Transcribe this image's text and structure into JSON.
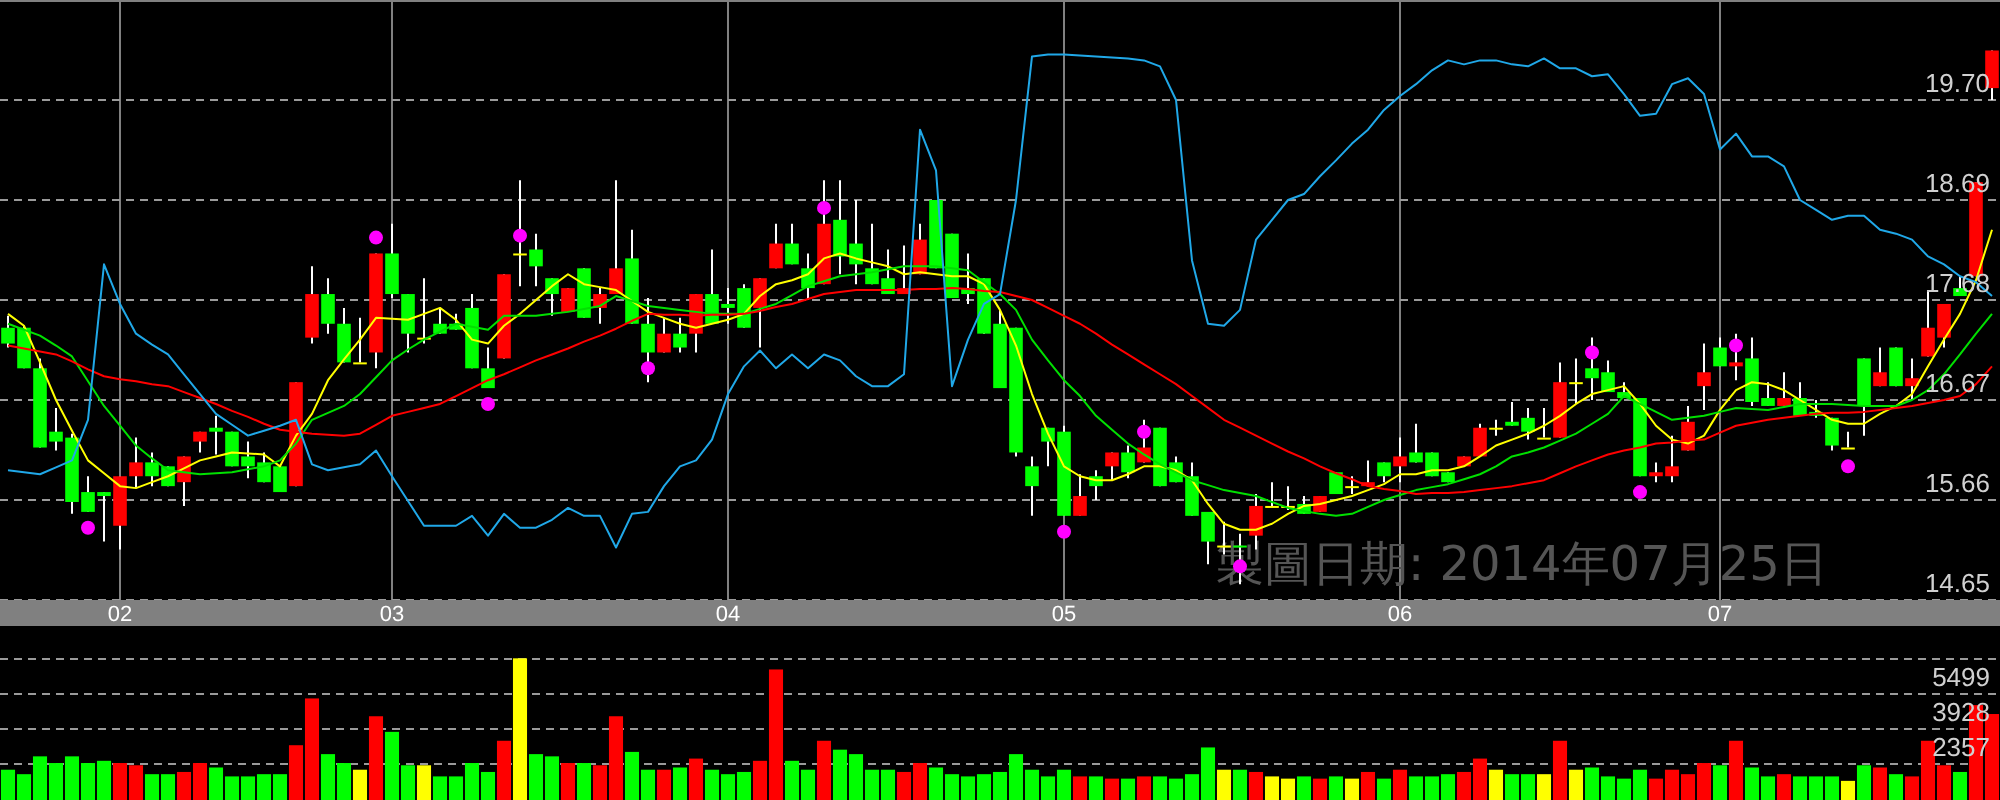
{
  "chart_data": [
    {
      "type": "candlestick",
      "ylim": [
        14.65,
        20.71
      ],
      "categories": [
        null,
        null,
        null,
        null,
        null,
        null,
        null,
        "02",
        null,
        null,
        null,
        null,
        null,
        null,
        null,
        null,
        null,
        null,
        null,
        null,
        null,
        null,
        null,
        null,
        "03",
        null,
        null,
        null,
        null,
        null,
        null,
        null,
        null,
        null,
        null,
        null,
        null,
        null,
        null,
        null,
        null,
        null,
        null,
        null,
        null,
        "04",
        null,
        null,
        null,
        null,
        null,
        null,
        null,
        null,
        null,
        null,
        null,
        null,
        null,
        null,
        null,
        null,
        null,
        null,
        null,
        null,
        "05",
        null,
        null,
        null,
        null,
        null,
        null,
        null,
        null,
        null,
        null,
        null,
        null,
        null,
        null,
        null,
        null,
        null,
        null,
        null,
        null,
        "06",
        null,
        null,
        null,
        null,
        null,
        null,
        null,
        null,
        null,
        null,
        null,
        null,
        null,
        null,
        null,
        null,
        null,
        null,
        null,
        "07",
        null,
        null,
        null,
        null,
        null,
        null,
        null,
        null,
        null,
        null,
        null,
        null,
        null,
        null,
        null,
        null,
        null
      ],
      "yticks": [
        14.65,
        15.66,
        16.67,
        17.68,
        18.69,
        {
          "value": 19.7,
          "label": "19.70"
        }
      ],
      "grid": true,
      "annotations": [
        "製圖日期: 2014年07月25日"
      ],
      "ohlc": [
        [
          17.4,
          17.52,
          17.2,
          17.24
        ],
        [
          17.4,
          17.42,
          16.99,
          16.99
        ],
        [
          16.99,
          17.09,
          16.19,
          16.19
        ],
        [
          16.35,
          16.59,
          16.16,
          16.25
        ],
        [
          16.29,
          16.33,
          15.52,
          15.64
        ],
        [
          15.74,
          15.9,
          15.54,
          15.54
        ],
        [
          15.74,
          15.74,
          15.24,
          15.7
        ],
        [
          15.4,
          15.9,
          15.16,
          15.9
        ],
        [
          15.9,
          16.29,
          15.78,
          16.04
        ],
        [
          16.04,
          16.14,
          15.8,
          15.9
        ],
        [
          16.0,
          16.0,
          15.8,
          15.8
        ],
        [
          15.84,
          16.1,
          15.6,
          16.1
        ],
        [
          16.25,
          16.35,
          16.14,
          16.35
        ],
        [
          16.39,
          16.51,
          16.12,
          16.35
        ],
        [
          16.35,
          16.35,
          16.0,
          16.0
        ],
        [
          16.1,
          16.25,
          15.88,
          16.0
        ],
        [
          16.04,
          16.14,
          15.84,
          15.84
        ],
        [
          16.0,
          16.0,
          15.74,
          15.74
        ],
        [
          15.8,
          16.85,
          15.8,
          16.85
        ],
        [
          17.3,
          18.02,
          17.24,
          17.74
        ],
        [
          17.74,
          17.9,
          17.34,
          17.44
        ],
        [
          17.44,
          17.6,
          17.05,
          17.05
        ],
        [
          17.05,
          17.5,
          17.05,
          17.05
        ],
        [
          17.15,
          18.15,
          16.99,
          18.15
        ],
        [
          18.15,
          18.45,
          17.7,
          17.74
        ],
        [
          17.74,
          17.74,
          17.15,
          17.34
        ],
        [
          17.3,
          17.9,
          17.24,
          17.3
        ],
        [
          17.44,
          17.6,
          17.34,
          17.34
        ],
        [
          17.44,
          17.54,
          17.38,
          17.38
        ],
        [
          17.6,
          17.74,
          16.99,
          16.99
        ],
        [
          16.99,
          17.2,
          16.79,
          16.79
        ],
        [
          17.09,
          17.94,
          17.09,
          17.94
        ],
        [
          18.15,
          18.89,
          17.82,
          18.15
        ],
        [
          18.19,
          18.35,
          17.82,
          18.02
        ],
        [
          17.9,
          17.9,
          17.52,
          17.74
        ],
        [
          17.56,
          17.8,
          17.56,
          17.8
        ],
        [
          18.0,
          18.0,
          17.5,
          17.5
        ],
        [
          17.6,
          17.8,
          17.44,
          17.74
        ],
        [
          17.74,
          18.89,
          17.74,
          18.0
        ],
        [
          18.1,
          18.39,
          17.44,
          17.44
        ],
        [
          17.44,
          17.7,
          16.85,
          17.15
        ],
        [
          17.15,
          17.5,
          17.15,
          17.34
        ],
        [
          17.34,
          17.5,
          17.15,
          17.2
        ],
        [
          17.34,
          17.74,
          17.15,
          17.74
        ],
        [
          17.74,
          18.19,
          17.44,
          17.44
        ],
        [
          17.64,
          17.8,
          17.44,
          17.6
        ],
        [
          17.8,
          17.84,
          17.4,
          17.4
        ],
        [
          17.6,
          17.9,
          17.2,
          17.9
        ],
        [
          18.0,
          18.45,
          18.0,
          18.25
        ],
        [
          18.25,
          18.45,
          18.04,
          18.04
        ],
        [
          18.0,
          18.15,
          17.68,
          17.8
        ],
        [
          17.84,
          18.89,
          17.84,
          18.45
        ],
        [
          18.49,
          18.89,
          17.94,
          18.12
        ],
        [
          18.25,
          18.69,
          17.84,
          18.04
        ],
        [
          18.0,
          18.45,
          17.84,
          17.84
        ],
        [
          17.9,
          18.19,
          17.74,
          17.74
        ],
        [
          17.74,
          18.23,
          17.74,
          17.8
        ],
        [
          17.94,
          18.45,
          17.94,
          18.29
        ],
        [
          18.69,
          18.69,
          18.0,
          18.0
        ],
        [
          18.35,
          18.35,
          17.7,
          17.7
        ],
        [
          17.8,
          18.15,
          17.64,
          17.74
        ],
        [
          17.9,
          17.9,
          17.34,
          17.34
        ],
        [
          17.44,
          17.58,
          16.79,
          16.79
        ],
        [
          17.4,
          17.4,
          16.1,
          16.14
        ],
        [
          16.0,
          16.1,
          15.5,
          15.8
        ],
        [
          16.39,
          16.39,
          16.0,
          16.25
        ],
        [
          16.35,
          16.41,
          15.5,
          15.5
        ],
        [
          15.5,
          15.92,
          15.5,
          15.7
        ],
        [
          15.9,
          15.96,
          15.66,
          15.8
        ],
        [
          16.0,
          16.14,
          15.86,
          16.14
        ],
        [
          16.14,
          16.21,
          15.88,
          15.94
        ],
        [
          16.04,
          16.47,
          16.04,
          16.19
        ],
        [
          16.39,
          16.39,
          15.8,
          15.8
        ],
        [
          16.04,
          16.1,
          15.84,
          15.84
        ],
        [
          15.9,
          16.04,
          15.5,
          15.5
        ],
        [
          15.54,
          15.54,
          15.01,
          15.24
        ],
        [
          15.2,
          15.44,
          15.11,
          15.2
        ],
        [
          15.2,
          15.32,
          14.81,
          15.18
        ],
        [
          15.3,
          15.72,
          15.16,
          15.6
        ],
        [
          15.6,
          15.84,
          15.6,
          15.6
        ],
        [
          15.6,
          15.8,
          15.56,
          15.6
        ],
        [
          15.62,
          15.7,
          15.52,
          15.52
        ],
        [
          15.54,
          15.7,
          15.54,
          15.7
        ],
        [
          15.94,
          15.94,
          15.72,
          15.72
        ],
        [
          15.8,
          15.9,
          15.72,
          15.8
        ],
        [
          15.8,
          16.06,
          15.8,
          15.84
        ],
        [
          16.04,
          16.04,
          15.84,
          15.9
        ],
        [
          16.0,
          16.29,
          15.84,
          16.1
        ],
        [
          16.14,
          16.43,
          16.04,
          16.04
        ],
        [
          16.14,
          16.14,
          15.9,
          15.9
        ],
        [
          15.94,
          15.94,
          15.84,
          15.84
        ],
        [
          16.0,
          16.1,
          16.0,
          16.1
        ],
        [
          16.1,
          16.43,
          16.1,
          16.39
        ],
        [
          16.39,
          16.47,
          16.31,
          16.39
        ],
        [
          16.45,
          16.65,
          16.41,
          16.41
        ],
        [
          16.49,
          16.59,
          16.27,
          16.35
        ],
        [
          16.29,
          16.59,
          16.29,
          16.29
        ],
        [
          16.29,
          17.05,
          16.29,
          16.85
        ],
        [
          16.85,
          17.09,
          16.63,
          16.85
        ],
        [
          16.99,
          17.3,
          16.67,
          16.89
        ],
        [
          16.95,
          17.07,
          16.75,
          16.75
        ],
        [
          16.75,
          16.85,
          16.69,
          16.69
        ],
        [
          16.69,
          16.69,
          15.9,
          15.9
        ],
        [
          15.9,
          16.04,
          15.84,
          15.94
        ],
        [
          15.9,
          16.31,
          15.84,
          16.0
        ],
        [
          16.16,
          16.61,
          16.16,
          16.45
        ],
        [
          16.81,
          17.24,
          16.57,
          16.95
        ],
        [
          17.2,
          17.3,
          17.01,
          17.01
        ],
        [
          17.01,
          17.34,
          16.87,
          17.05
        ],
        [
          17.09,
          17.3,
          16.61,
          16.65
        ],
        [
          16.69,
          16.85,
          16.61,
          16.61
        ],
        [
          16.61,
          16.95,
          16.61,
          16.69
        ],
        [
          16.69,
          16.85,
          16.51,
          16.51
        ],
        [
          16.55,
          16.67,
          16.49,
          16.51
        ],
        [
          16.49,
          16.49,
          16.16,
          16.21
        ],
        [
          16.19,
          16.35,
          16.19,
          16.19
        ],
        [
          17.09,
          17.09,
          16.31,
          16.61
        ],
        [
          16.81,
          17.2,
          16.81,
          16.95
        ],
        [
          17.2,
          17.2,
          16.81,
          16.81
        ],
        [
          16.81,
          17.09,
          16.67,
          16.89
        ],
        [
          17.11,
          17.78,
          17.11,
          17.4
        ],
        [
          17.3,
          17.64,
          17.2,
          17.64
        ],
        [
          17.8,
          17.92,
          17.72,
          17.72
        ],
        [
          17.92,
          18.87,
          17.92,
          18.87
        ],
        [
          19.82,
          20.2,
          19.7,
          20.2
        ]
      ],
      "colors": [
        "#00ff00",
        "#00ff00",
        "#00ff00",
        "#00ff00",
        "#00ff00",
        "#00ff00",
        "#00ff00",
        "#ff0000",
        "#ff0000",
        "#00ff00",
        "#00ff00",
        "#ff0000",
        "#ff0000",
        "#00ff00",
        "#00ff00",
        "#00ff00",
        "#00ff00",
        "#00ff00",
        "#ff0000",
        "#ff0000",
        "#00ff00",
        "#00ff00",
        "#ffff00",
        "#ff0000",
        "#00ff00",
        "#00ff00",
        "#ffff00",
        "#00ff00",
        "#00ff00",
        "#00ff00",
        "#00ff00",
        "#ff0000",
        "#ffff00",
        "#00ff00",
        "#00ff00",
        "#ff0000",
        "#00ff00",
        "#ff0000",
        "#ff0000",
        "#00ff00",
        "#00ff00",
        "#ff0000",
        "#00ff00",
        "#ff0000",
        "#00ff00",
        "#00ff00",
        "#00ff00",
        "#ff0000",
        "#ff0000",
        "#00ff00",
        "#00ff00",
        "#ff0000",
        "#00ff00",
        "#00ff00",
        "#00ff00",
        "#00ff00",
        "#ff0000",
        "#ff0000",
        "#00ff00",
        "#00ff00",
        "#00ff00",
        "#00ff00",
        "#00ff00",
        "#00ff00",
        "#00ff00",
        "#00ff00",
        "#00ff00",
        "#ff0000",
        "#00ff00",
        "#ff0000",
        "#00ff00",
        "#ff0000",
        "#00ff00",
        "#00ff00",
        "#00ff00",
        "#00ff00",
        "#ffff00",
        "#00ff00",
        "#ff0000",
        "#ffff00",
        "#ffff00",
        "#00ff00",
        "#ff0000",
        "#00ff00",
        "#ffff00",
        "#ff0000",
        "#00ff00",
        "#ff0000",
        "#00ff00",
        "#00ff00",
        "#00ff00",
        "#ff0000",
        "#ff0000",
        "#ffff00",
        "#00ff00",
        "#00ff00",
        "#ffff00",
        "#ff0000",
        "#ffff00",
        "#00ff00",
        "#00ff00",
        "#00ff00",
        "#00ff00",
        "#ff0000",
        "#ff0000",
        "#ff0000",
        "#ff0000",
        "#00ff00",
        "#ff0000",
        "#00ff00",
        "#00ff00",
        "#ff0000",
        "#00ff00",
        "#00ff00",
        "#00ff00",
        "#ffff00",
        "#00ff00",
        "#ff0000",
        "#00ff00",
        "#ff0000",
        "#ff0000",
        "#ff0000",
        "#00ff00",
        "#ff0000",
        "#ff0000"
      ],
      "series": [
        {
          "type": "line",
          "color": "#ffff00",
          "values": [
            17.54,
            17.42,
            17.05,
            16.67,
            16.36,
            16.06,
            15.93,
            15.8,
            15.78,
            15.84,
            15.9,
            15.98,
            16.06,
            16.1,
            16.14,
            16.13,
            16.12,
            16.0,
            16.31,
            16.53,
            16.87,
            17.08,
            17.28,
            17.5,
            17.49,
            17.48,
            17.54,
            17.6,
            17.48,
            17.28,
            17.24,
            17.42,
            17.54,
            17.68,
            17.82,
            17.94,
            17.84,
            17.81,
            17.78,
            17.67,
            17.56,
            17.5,
            17.44,
            17.4,
            17.44,
            17.48,
            17.54,
            17.72,
            17.84,
            17.88,
            17.94,
            18.1,
            18.15,
            18.1,
            18.06,
            18.02,
            17.94,
            17.96,
            17.94,
            17.92,
            17.92,
            17.84,
            17.58,
            17.22,
            16.73,
            16.33,
            16.0,
            15.9,
            15.86,
            15.86,
            15.92,
            16.0,
            16.0,
            15.96,
            15.86,
            15.62,
            15.42,
            15.36,
            15.36,
            15.42,
            15.52,
            15.6,
            15.62,
            15.66,
            15.7,
            15.76,
            15.82,
            15.92,
            15.92,
            15.96,
            15.96,
            16.0,
            16.1,
            16.21,
            16.27,
            16.33,
            16.41,
            16.51,
            16.63,
            16.73,
            16.77,
            16.81,
            16.63,
            16.41,
            16.27,
            16.23,
            16.31,
            16.57,
            16.77,
            16.85,
            16.83,
            16.77,
            16.67,
            16.57,
            16.47,
            16.43,
            16.43,
            16.53,
            16.61,
            16.73,
            17.01,
            17.28,
            17.54,
            17.88,
            18.39
          ]
        },
        {
          "type": "line",
          "color": "#00e000",
          "values": [
            17.44,
            17.38,
            17.32,
            17.22,
            17.11,
            16.86,
            16.61,
            16.41,
            16.21,
            16.08,
            15.96,
            15.94,
            15.92,
            15.93,
            15.94,
            15.97,
            16.0,
            16.06,
            16.23,
            16.47,
            16.54,
            16.61,
            16.73,
            16.9,
            17.07,
            17.18,
            17.28,
            17.36,
            17.44,
            17.41,
            17.38,
            17.52,
            17.52,
            17.52,
            17.54,
            17.56,
            17.59,
            17.62,
            17.72,
            17.67,
            17.62,
            17.6,
            17.58,
            17.56,
            17.54,
            17.54,
            17.54,
            17.59,
            17.64,
            17.73,
            17.82,
            17.87,
            17.92,
            17.94,
            17.96,
            17.99,
            18.02,
            18.02,
            18.02,
            18.0,
            17.98,
            17.86,
            17.74,
            17.58,
            17.28,
            17.07,
            16.87,
            16.71,
            16.51,
            16.37,
            16.23,
            16.12,
            16.02,
            15.94,
            15.86,
            15.81,
            15.76,
            15.73,
            15.7,
            15.64,
            15.58,
            15.55,
            15.52,
            15.5,
            15.52,
            15.59,
            15.66,
            15.71,
            15.76,
            15.79,
            15.82,
            15.87,
            15.92,
            16.0,
            16.1,
            16.14,
            16.19,
            16.26,
            16.33,
            16.43,
            16.53,
            16.71,
            16.63,
            16.55,
            16.47,
            16.49,
            16.51,
            16.55,
            16.59,
            16.58,
            16.57,
            16.6,
            16.63,
            16.63,
            16.63,
            16.62,
            16.61,
            16.61,
            16.61,
            16.67,
            16.77,
            16.93,
            17.13,
            17.34,
            17.54
          ]
        },
        {
          "type": "line",
          "color": "#ff0000",
          "values": [
            17.22,
            17.19,
            17.16,
            17.13,
            17.06,
            16.98,
            16.91,
            16.88,
            16.86,
            16.83,
            16.81,
            16.75,
            16.69,
            16.63,
            16.56,
            16.5,
            16.43,
            16.37,
            16.35,
            16.33,
            16.32,
            16.31,
            16.33,
            16.42,
            16.51,
            16.55,
            16.59,
            16.63,
            16.71,
            16.79,
            16.87,
            16.93,
            17.0,
            17.07,
            17.13,
            17.19,
            17.26,
            17.32,
            17.39,
            17.47,
            17.54,
            17.53,
            17.53,
            17.52,
            17.53,
            17.53,
            17.54,
            17.57,
            17.61,
            17.64,
            17.69,
            17.74,
            17.76,
            17.78,
            17.78,
            17.78,
            17.78,
            17.79,
            17.79,
            17.8,
            17.79,
            17.77,
            17.76,
            17.72,
            17.68,
            17.6,
            17.52,
            17.44,
            17.34,
            17.23,
            17.13,
            17.03,
            16.93,
            16.83,
            16.71,
            16.59,
            16.47,
            16.39,
            16.31,
            16.23,
            16.15,
            16.08,
            16.0,
            15.93,
            15.87,
            15.8,
            15.77,
            15.75,
            15.72,
            15.73,
            15.73,
            15.74,
            15.76,
            15.78,
            15.8,
            15.83,
            15.86,
            15.93,
            16.0,
            16.06,
            16.12,
            16.16,
            16.19,
            16.23,
            16.24,
            16.26,
            16.27,
            16.34,
            16.41,
            16.44,
            16.47,
            16.49,
            16.51,
            16.53,
            16.54,
            16.54,
            16.55,
            16.57,
            16.59,
            16.61,
            16.64,
            16.67,
            16.71,
            16.83,
            17.01
          ]
        },
        {
          "type": "line",
          "color": "#20a8e8",
          "values": [
            15.96,
            15.94,
            15.92,
            15.99,
            16.06,
            16.47,
            18.04,
            17.64,
            17.34,
            17.23,
            17.13,
            16.93,
            16.73,
            16.53,
            16.42,
            16.31,
            16.36,
            16.41,
            16.47,
            16.02,
            15.96,
            15.99,
            16.02,
            16.16,
            15.9,
            15.65,
            15.4,
            15.4,
            15.4,
            15.5,
            15.3,
            15.52,
            15.38,
            15.38,
            15.46,
            15.58,
            15.5,
            15.5,
            15.18,
            15.52,
            15.54,
            15.8,
            16.0,
            16.06,
            16.27,
            16.73,
            17.01,
            17.17,
            16.99,
            17.13,
            16.99,
            17.13,
            17.07,
            16.91,
            16.81,
            16.81,
            16.93,
            19.4,
            18.99,
            16.81,
            17.28,
            17.64,
            17.74,
            18.69,
            20.14,
            20.16,
            20.16,
            20.15,
            20.14,
            20.13,
            20.12,
            20.1,
            20.04,
            19.7,
            18.08,
            17.44,
            17.42,
            17.58,
            18.29,
            18.49,
            18.69,
            18.75,
            18.93,
            19.09,
            19.26,
            19.4,
            19.6,
            19.74,
            19.86,
            20.0,
            20.1,
            20.06,
            20.1,
            20.1,
            20.06,
            20.04,
            20.12,
            20.02,
            20.02,
            19.94,
            19.96,
            19.76,
            19.54,
            19.56,
            19.86,
            19.92,
            19.76,
            19.2,
            19.36,
            19.13,
            19.13,
            19.03,
            18.69,
            18.59,
            18.49,
            18.53,
            18.53,
            18.39,
            18.35,
            18.29,
            18.12,
            18.04,
            17.92,
            17.86,
            17.72
          ]
        },
        {
          "type": "scatter",
          "color": "#ff00ff",
          "marker": "circle",
          "values": [
            null,
            null,
            null,
            null,
            null,
            15.38,
            null,
            null,
            null,
            null,
            null,
            null,
            null,
            null,
            null,
            null,
            null,
            null,
            null,
            null,
            null,
            null,
            null,
            18.31,
            null,
            null,
            null,
            null,
            null,
            null,
            16.63,
            null,
            18.33,
            null,
            null,
            null,
            null,
            null,
            null,
            null,
            16.99,
            null,
            null,
            null,
            null,
            null,
            null,
            null,
            null,
            null,
            null,
            18.61,
            null,
            null,
            null,
            null,
            null,
            null,
            null,
            null,
            null,
            null,
            null,
            null,
            null,
            null,
            15.34,
            null,
            null,
            null,
            null,
            16.35,
            null,
            null,
            null,
            null,
            null,
            14.99,
            null,
            null,
            null,
            null,
            null,
            null,
            null,
            null,
            null,
            null,
            null,
            null,
            null,
            null,
            null,
            null,
            null,
            null,
            null,
            null,
            null,
            17.15,
            null,
            null,
            15.74,
            null,
            null,
            null,
            null,
            null,
            17.22,
            null,
            null,
            null,
            null,
            null,
            null,
            16.0,
            null,
            null,
            null,
            null,
            null,
            null,
            null,
            null,
            null
          ]
        }
      ]
    },
    {
      "type": "bar",
      "ylim": [
        741,
        8641
      ],
      "tick_labels": "y",
      "grid": "y",
      "categories": [
        null,
        null,
        null,
        null,
        null,
        null,
        null,
        "02",
        null,
        null,
        null,
        null,
        null,
        null,
        null,
        null,
        null,
        null,
        null,
        null,
        null,
        null,
        null,
        null,
        "03",
        null,
        null,
        null,
        null,
        null,
        null,
        null,
        null,
        null,
        null,
        null,
        null,
        null,
        null,
        null,
        null,
        null,
        null,
        null,
        null,
        "04",
        null,
        null,
        null,
        null,
        null,
        null,
        null,
        null,
        null,
        null,
        null,
        null,
        null,
        null,
        null,
        null,
        null,
        null,
        null,
        null,
        "05",
        null,
        null,
        null,
        null,
        null,
        null,
        null,
        null,
        null,
        null,
        null,
        null,
        null,
        null,
        null,
        null,
        null,
        null,
        null,
        null,
        "06",
        null,
        null,
        null,
        null,
        null,
        null,
        null,
        null,
        null,
        null,
        null,
        null,
        null,
        null,
        null,
        null,
        null,
        null,
        null,
        "07",
        null,
        null,
        null,
        null,
        null,
        null,
        null,
        null,
        null,
        null,
        null,
        null,
        null,
        null,
        null,
        null,
        null
      ],
      "yticks": [
        2357,
        3928,
        5499,
        {
          "value": 7070,
          "label": null
        }
      ],
      "values": [
        2100,
        1900,
        2700,
        2400,
        2700,
        2400,
        2500,
        2400,
        2300,
        1900,
        1900,
        2000,
        2400,
        2200,
        1800,
        1800,
        1900,
        1900,
        3200,
        5300,
        2800,
        2400,
        2100,
        4500,
        3800,
        2300,
        2300,
        1800,
        1800,
        2400,
        2000,
        3400,
        7100,
        2800,
        2700,
        2400,
        2400,
        2300,
        4500,
        2900,
        2100,
        2100,
        2200,
        2600,
        2100,
        1900,
        2000,
        2500,
        6600,
        2500,
        2100,
        3400,
        3000,
        2800,
        2100,
        2100,
        2000,
        2400,
        2200,
        1900,
        1800,
        1900,
        2000,
        2800,
        2100,
        1800,
        2100,
        1800,
        1800,
        1700,
        1700,
        1800,
        1800,
        1700,
        1900,
        3100,
        2100,
        2100,
        2000,
        1800,
        1700,
        1800,
        1700,
        1800,
        1700,
        2000,
        1700,
        2100,
        1800,
        1800,
        1900,
        2000,
        2600,
        2100,
        1900,
        1900,
        1900,
        3400,
        2100,
        2200,
        1800,
        1700,
        2100,
        1700,
        2100,
        1900,
        2400,
        2300,
        3400,
        2200,
        1800,
        1900,
        1800,
        1800,
        1800,
        1600,
        2300,
        2200,
        1900,
        1800,
        3400,
        2300,
        2000,
        5000,
        4600
      ],
      "colors": [
        "#00ff00",
        "#00ff00",
        "#00ff00",
        "#00ff00",
        "#00ff00",
        "#00ff00",
        "#00ff00",
        "#ff0000",
        "#ff0000",
        "#00ff00",
        "#00ff00",
        "#ff0000",
        "#ff0000",
        "#00ff00",
        "#00ff00",
        "#00ff00",
        "#00ff00",
        "#00ff00",
        "#ff0000",
        "#ff0000",
        "#00ff00",
        "#00ff00",
        "#ffff00",
        "#ff0000",
        "#00ff00",
        "#00ff00",
        "#ffff00",
        "#00ff00",
        "#00ff00",
        "#00ff00",
        "#00ff00",
        "#ff0000",
        "#ffff00",
        "#00ff00",
        "#00ff00",
        "#ff0000",
        "#00ff00",
        "#ff0000",
        "#ff0000",
        "#00ff00",
        "#00ff00",
        "#ff0000",
        "#00ff00",
        "#ff0000",
        "#00ff00",
        "#00ff00",
        "#00ff00",
        "#ff0000",
        "#ff0000",
        "#00ff00",
        "#00ff00",
        "#ff0000",
        "#00ff00",
        "#00ff00",
        "#00ff00",
        "#00ff00",
        "#ff0000",
        "#ff0000",
        "#00ff00",
        "#00ff00",
        "#00ff00",
        "#00ff00",
        "#00ff00",
        "#00ff00",
        "#00ff00",
        "#00ff00",
        "#00ff00",
        "#ff0000",
        "#00ff00",
        "#ff0000",
        "#00ff00",
        "#ff0000",
        "#00ff00",
        "#00ff00",
        "#00ff00",
        "#00ff00",
        "#ffff00",
        "#00ff00",
        "#ff0000",
        "#ffff00",
        "#ffff00",
        "#00ff00",
        "#ff0000",
        "#00ff00",
        "#ffff00",
        "#ff0000",
        "#00ff00",
        "#ff0000",
        "#00ff00",
        "#00ff00",
        "#00ff00",
        "#ff0000",
        "#ff0000",
        "#ffff00",
        "#00ff00",
        "#00ff00",
        "#ffff00",
        "#ff0000",
        "#ffff00",
        "#00ff00",
        "#00ff00",
        "#00ff00",
        "#00ff00",
        "#ff0000",
        "#ff0000",
        "#ff0000",
        "#ff0000",
        "#00ff00",
        "#ff0000",
        "#00ff00",
        "#00ff00",
        "#ff0000",
        "#00ff00",
        "#00ff00",
        "#00ff00",
        "#ffff00",
        "#00ff00",
        "#ff0000",
        "#00ff00",
        "#ff0000",
        "#ff0000",
        "#ff0000",
        "#00ff00",
        "#ff0000",
        "#ff0000"
      ]
    }
  ]
}
